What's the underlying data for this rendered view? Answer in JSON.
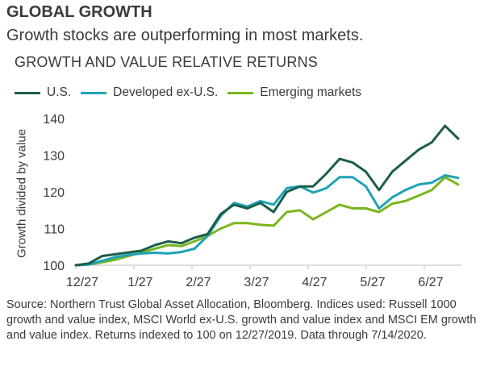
{
  "header": {
    "title": "GLOBAL GROWTH",
    "subtitle": "Growth stocks are outperforming in most markets."
  },
  "footer": {
    "source": "Source: Northern Trust Global Asset Allocation, Bloomberg. Indices used: Russell 1000 growth and value index, MSCI World ex-U.S. growth and value index and MSCI EM growth and value index. Returns indexed to 100 on 12/27/2019. Data through 7/14/2020."
  },
  "colors": {
    "us": "#1b5e4b",
    "developed": "#1fa2b5",
    "emerging": "#7ab51d"
  },
  "chart_data": {
    "type": "line",
    "title": "GROWTH AND VALUE RELATIVE RETURNS",
    "ylabel": "Growth divided by value",
    "xlabel": "",
    "ylim": [
      100,
      140
    ],
    "yticks": [
      100,
      110,
      120,
      130,
      140
    ],
    "grid": false,
    "legend_position": "top",
    "x_tick_labels": [
      "12/27",
      "1/27",
      "2/27",
      "3/27",
      "4/27",
      "5/27",
      "6/27"
    ],
    "series": [
      {
        "name": "U.S.",
        "color": "#1b5e4b",
        "values": [
          100,
          100.5,
          102.5,
          103,
          103.5,
          104,
          105.5,
          106.5,
          106,
          107.5,
          108.5,
          114,
          116.5,
          115.5,
          117,
          114.5,
          120,
          121.5,
          121.5,
          125,
          129,
          128,
          125.5,
          120.5,
          125.5,
          128.5,
          131.5,
          133.5,
          138,
          134.5
        ]
      },
      {
        "name": "Developed ex-U.S.",
        "color": "#1fa2b5",
        "values": [
          100,
          100.2,
          101.2,
          102.2,
          102.8,
          103.2,
          103.4,
          103.2,
          103.6,
          104.5,
          108,
          113.5,
          117,
          116,
          117.5,
          116.5,
          121,
          121.5,
          119.8,
          121,
          124,
          124,
          121.5,
          115.5,
          118.5,
          120.5,
          122,
          122.5,
          124.5,
          123.8
        ]
      },
      {
        "name": "Emerging markets",
        "color": "#7ab51d",
        "values": [
          100,
          100.2,
          100.8,
          101.5,
          102.5,
          103.5,
          104.5,
          105.5,
          105.2,
          106.5,
          108,
          110,
          111.5,
          111.5,
          111,
          110.8,
          114.5,
          115,
          112.5,
          114.5,
          116.5,
          115.5,
          115.5,
          114.5,
          116.8,
          117.5,
          119,
          120.5,
          124,
          122
        ]
      }
    ]
  }
}
